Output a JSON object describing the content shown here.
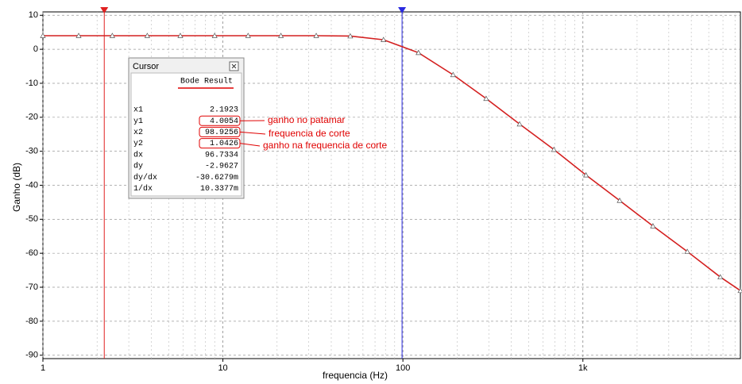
{
  "chart_data": {
    "type": "line",
    "y_label": "Ganho (dB)",
    "x_label": "frequencia (Hz)",
    "log_x": true,
    "grid": true,
    "xlim": [
      1,
      7500
    ],
    "ylim": [
      -91,
      11
    ],
    "xticks": [
      1,
      10,
      100,
      {
        "value": 1000,
        "label": "1k"
      }
    ],
    "yticks": [
      10,
      0,
      -10,
      -20,
      -30,
      -40,
      -50,
      -60,
      -70,
      -80,
      -90
    ],
    "x": [
      1,
      1.58,
      2.43,
      3.8,
      5.8,
      9,
      13.8,
      21,
      33,
      51,
      78,
      122,
      190,
      290,
      445,
      690,
      1040,
      1600,
      2450,
      3800,
      5800,
      7500
    ],
    "series": [
      {
        "color": "#d42020",
        "values": [
          4,
          4,
          4,
          4,
          4,
          4,
          4,
          4,
          4,
          3.9,
          2.8,
          -1,
          -7.5,
          -14.5,
          -22,
          -29.5,
          -37,
          -44.5,
          -52,
          -59.5,
          -67,
          -71
        ]
      }
    ],
    "cursors": [
      {
        "x": 2.1923,
        "color": "#e02020"
      },
      {
        "x": 98.9256,
        "color": "#2a2ae0"
      }
    ],
    "cursor_panel": {
      "title": "Cursor",
      "header": "Bode Result",
      "rows": [
        [
          "x1",
          "2.1923"
        ],
        [
          "y1",
          "4.0054"
        ],
        [
          "x2",
          "98.9256"
        ],
        [
          "y2",
          "1.0426"
        ],
        [
          "dx",
          "96.7334"
        ],
        [
          "dy",
          "-2.9627"
        ],
        [
          "dy/dx",
          "-30.6279m"
        ],
        [
          "1/dx",
          "10.3377m"
        ]
      ]
    },
    "annotations": [
      "ganho no patamar",
      "frequencia de corte",
      "ganho na frequencia de corte"
    ]
  }
}
